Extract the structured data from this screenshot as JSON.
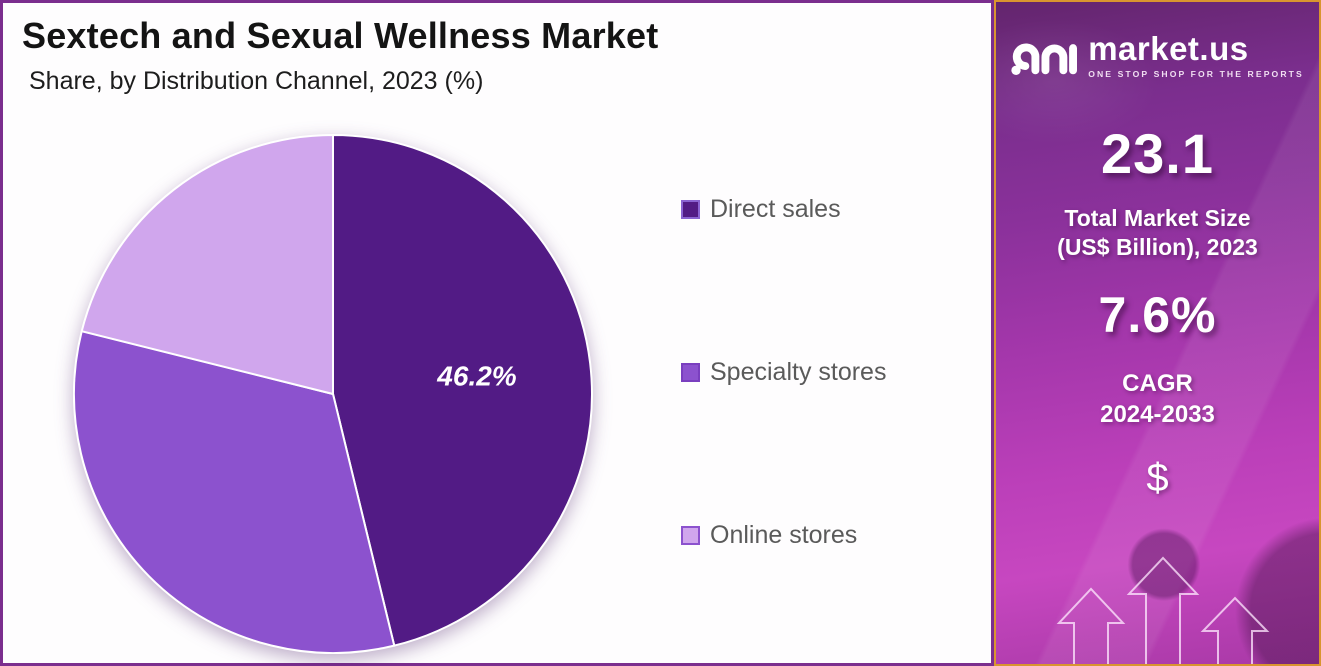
{
  "header": {
    "title": "Sextech and Sexual Wellness Market",
    "subtitle": "Share, by Distribution Channel, 2023 (%)"
  },
  "chart_data": {
    "type": "pie",
    "title": "Sextech and Sexual Wellness Market",
    "subtitle": "Share, by Distribution Channel, 2023 (%)",
    "categories": [
      "Direct sales",
      "Specialty stores",
      "Online stores"
    ],
    "values": [
      46.2,
      32.7,
      21.1
    ],
    "colors": [
      "#521b85",
      "#8c52ce",
      "#d0a6ed"
    ],
    "start_angle_deg": 0,
    "direction": "clockwise",
    "legend_position": "right",
    "visible_slice_label": "46.2%",
    "labeled_slice_index": 0
  },
  "legend": {
    "items": [
      {
        "label": "Direct sales",
        "color": "#521b85",
        "border": "#8a63d2"
      },
      {
        "label": "Specialty stores",
        "color": "#8c52ce",
        "border": "#7a3fbf"
      },
      {
        "label": "Online stores",
        "color": "#d0a6ed",
        "border": "#8c52ce"
      }
    ]
  },
  "sidebar": {
    "logo": {
      "brand": "market.us",
      "tagline": "ONE STOP SHOP FOR THE REPORTS"
    },
    "market_size_value": "23.1",
    "market_size_label_line1": "Total Market Size",
    "market_size_label_line2": "(US$ Billion), 2023",
    "cagr_value": "7.6%",
    "cagr_label_line1": "CAGR",
    "cagr_label_line2": "2024-2033",
    "currency_symbol": "$",
    "colors": {
      "gradient_top": "#63256d",
      "gradient_bottom": "#c747c0",
      "border": "#d9952f"
    }
  },
  "panel_colors": {
    "chart_border": "#7b2e8e",
    "background": "#fefdfe"
  }
}
